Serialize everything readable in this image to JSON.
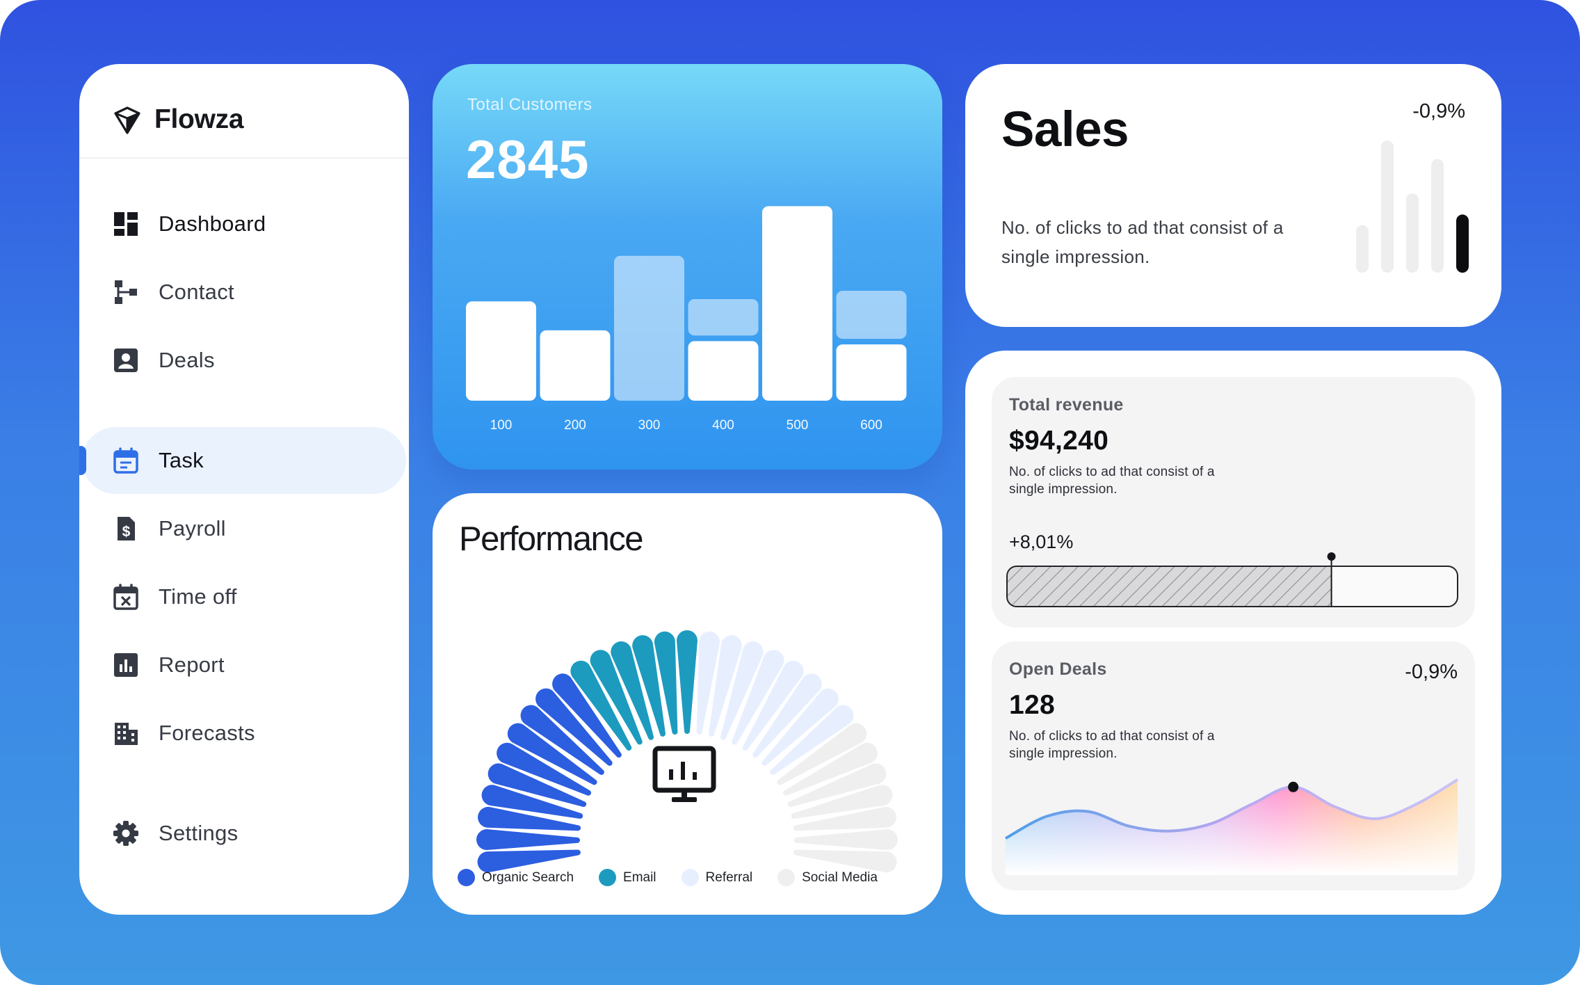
{
  "brand": {
    "name": "Flowza",
    "logo_icon": "diamond-logo-icon"
  },
  "sidebar": {
    "items": [
      {
        "label": "Dashboard",
        "icon": "dashboard-icon"
      },
      {
        "label": "Contact",
        "icon": "org-chart-icon"
      },
      {
        "label": "Deals",
        "icon": "contact-card-icon"
      },
      {
        "label": "Task",
        "icon": "calendar-icon",
        "active": true
      },
      {
        "label": "Payroll",
        "icon": "dollar-document-icon"
      },
      {
        "label": "Time off",
        "icon": "calendar-x-icon"
      },
      {
        "label": "Report",
        "icon": "report-chart-icon"
      },
      {
        "label": "Forecasts",
        "icon": "building-icon"
      },
      {
        "label": "Settings",
        "icon": "gear-icon"
      }
    ]
  },
  "customers": {
    "title": "Total Customers",
    "value": "2845"
  },
  "performance": {
    "title": "Performance",
    "center_icon": "monitor-chart-icon",
    "legend": [
      {
        "label": "Organic Search",
        "color": "#2c5ee0"
      },
      {
        "label": "Email",
        "color": "#1d9bbf"
      },
      {
        "label": "Referral",
        "color": "#e7efff"
      },
      {
        "label": "Social Media",
        "color": "#efefef"
      }
    ]
  },
  "sales": {
    "title": "Sales",
    "change": "-0,9%",
    "description": "No. of clicks to ad that consist of a single impression.",
    "highlight_color": "#0d0d0f"
  },
  "revenue": {
    "title": "Total revenue",
    "value": "$94,240",
    "description": "No. of clicks to ad that consist of a single impression.",
    "change": "+8,01%",
    "progress": 0.72
  },
  "deals": {
    "title": "Open Deals",
    "value": "128",
    "change": "-0,9%",
    "description": "No. of clicks to ad that consist of a single impression."
  },
  "chart_data": [
    {
      "type": "bar",
      "title": "Total Customers",
      "categories": [
        "100",
        "200",
        "300",
        "400",
        "500",
        "600"
      ],
      "series": [
        {
          "values": [
            1.2,
            0.85,
            0,
            0.72,
            2.35,
            0.68
          ]
        },
        {
          "values": [
            0,
            0,
            1.75,
            0.44,
            0,
            0.58
          ]
        }
      ]
    },
    {
      "type": "pie",
      "title": "Performance",
      "categories": [
        "Organic Search",
        "Email",
        "Referral",
        "Social Media"
      ],
      "values": [
        10,
        6,
        8,
        7
      ],
      "colors": [
        "#2c5ee0",
        "#1d9bbf",
        "#e7efff",
        "#efefef"
      ]
    },
    {
      "type": "bar",
      "title": "Sales",
      "values": [
        0.36,
        1.0,
        0.6,
        0.86,
        0.44
      ],
      "highlight_index": 4
    },
    {
      "type": "area",
      "title": "Open Deals",
      "values": [
        0.3,
        0.48,
        0.52,
        0.4,
        0.36,
        0.42,
        0.58,
        0.72,
        0.56,
        0.46,
        0.58,
        0.78
      ],
      "highlight_index": 7
    }
  ]
}
